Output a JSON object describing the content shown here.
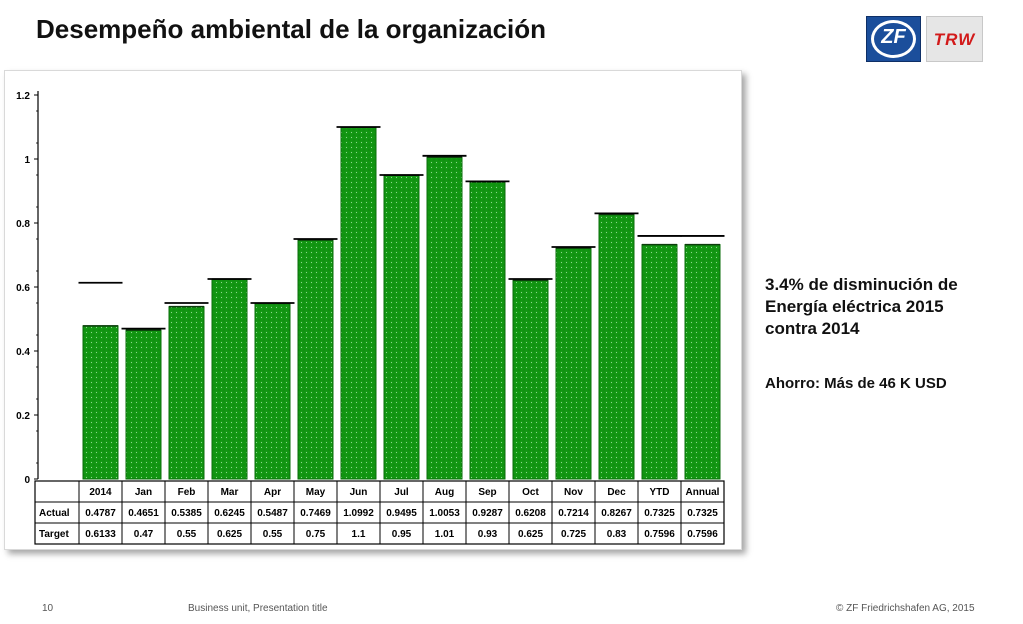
{
  "title": "Desempeño ambiental de la organización",
  "logos": {
    "zf": "ZF",
    "trw": "TRW"
  },
  "side_text": {
    "line1": "3.4% de disminución  de",
    "line2": "Energía eléctrica 2015",
    "line3": "contra 2014",
    "savings": "Ahorro: Más de 46 K USD"
  },
  "footer": {
    "page": "10",
    "unit": "Business unit, Presentation title",
    "copyright": "© ZF Friedrichshafen AG, 2015"
  },
  "colors": {
    "bar": "#119411",
    "bar_dark": "#0a6e0a",
    "target_line": "#000000"
  },
  "chart_data": {
    "type": "bar",
    "categories": [
      "2014",
      "Jan",
      "Feb",
      "Mar",
      "Apr",
      "May",
      "Jun",
      "Jul",
      "Aug",
      "Sep",
      "Oct",
      "Nov",
      "Dec",
      "YTD",
      "Annual"
    ],
    "series": [
      {
        "name": "Actual",
        "values": [
          0.4787,
          0.4651,
          0.5385,
          0.6245,
          0.5487,
          0.7469,
          1.0992,
          0.9495,
          1.0053,
          0.9287,
          0.6208,
          0.7214,
          0.8267,
          0.7325,
          0.7325
        ]
      },
      {
        "name": "Target",
        "values": [
          0.6133,
          0.47,
          0.55,
          0.625,
          0.55,
          0.75,
          1.1,
          0.95,
          1.01,
          0.93,
          0.625,
          0.725,
          0.83,
          0.7596,
          0.7596
        ]
      }
    ],
    "table": {
      "rows": [
        {
          "label": "Actual",
          "values": [
            "0.4787",
            "0.4651",
            "0.5385",
            "0.6245",
            "0.5487",
            "0.7469",
            "1.0992",
            "0.9495",
            "1.0053",
            "0.9287",
            "0.6208",
            "0.7214",
            "0.8267",
            "0.7325",
            "0.7325"
          ]
        },
        {
          "label": "Target",
          "values": [
            "0.6133",
            "0.47",
            "0.55",
            "0.625",
            "0.55",
            "0.75",
            "1.1",
            "0.95",
            "1.01",
            "0.93",
            "0.625",
            "0.725",
            "0.83",
            "0.7596",
            "0.7596"
          ]
        }
      ]
    },
    "yticks": [
      "0",
      "0.2",
      "0.4",
      "0.6",
      "0.8",
      "1",
      "1.2"
    ],
    "ylim": [
      0,
      1.2
    ],
    "grid": false,
    "legend": "none"
  }
}
